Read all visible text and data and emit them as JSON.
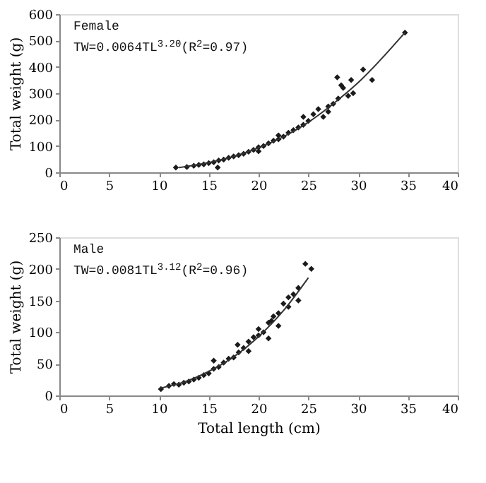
{
  "chart_data": [
    {
      "type": "scatter",
      "ylabel": "Total weight (g)",
      "annotations": [
        "Female",
        "TW=0.0064TL$^{3.20}$(R$^{2}$=0.97)"
      ],
      "xlim": [
        0,
        40
      ],
      "xticks": [
        0,
        5,
        10,
        15,
        20,
        25,
        30,
        35,
        40
      ],
      "ylim": [
        0,
        600
      ],
      "yticks": [
        0,
        100,
        200,
        300,
        400,
        500,
        600
      ],
      "series": [
        {
          "color": "#1a1a1a",
          "marker": "diamond",
          "x": [
            11.7,
            12.8,
            13.5,
            14,
            14.5,
            15,
            15.5,
            15.9,
            16,
            16.5,
            17,
            17.5,
            18,
            18.5,
            19,
            19.5,
            20,
            20,
            20.5,
            21,
            21.5,
            22,
            22,
            22.5,
            23,
            23.5,
            24,
            24.5,
            24.5,
            25,
            25.5,
            26,
            26.5,
            27,
            27,
            27.5,
            27.9,
            28.3,
            28,
            28.5,
            29,
            29.5,
            29.3,
            30.5,
            31.4,
            34.7
          ],
          "values": [
            18,
            20,
            25,
            28,
            30,
            35,
            38,
            18,
            45,
            48,
            55,
            60,
            65,
            70,
            78,
            85,
            95,
            80,
            100,
            110,
            120,
            125,
            140,
            135,
            150,
            160,
            170,
            180,
            210,
            195,
            220,
            240,
            210,
            230,
            250,
            260,
            360,
            330,
            280,
            320,
            290,
            300,
            350,
            390,
            350,
            530
          ]
        },
        {
          "type": "line",
          "color": "#333333",
          "x": [
            12,
            15,
            17.5,
            20,
            22.5,
            25,
            27.5,
            30,
            34.7
          ],
          "values": [
            18,
            37,
            60,
            93,
            135,
            190,
            260,
            340,
            530
          ]
        }
      ]
    },
    {
      "type": "scatter",
      "xlabel": "Total length (cm)",
      "ylabel": "Total weight (g)",
      "annotations": [
        "Male",
        "TW=0.0081TL$^{3.12}$(R$^{2}$=0.96)"
      ],
      "xlim": [
        0,
        40
      ],
      "xticks": [
        0,
        5,
        10,
        15,
        20,
        25,
        30,
        35,
        40
      ],
      "ylim": [
        0,
        250
      ],
      "yticks": [
        0,
        50,
        100,
        150,
        200,
        250
      ],
      "series": [
        {
          "color": "#1a1a1a",
          "marker": "diamond",
          "x": [
            10.2,
            11,
            11.5,
            12,
            12.5,
            13,
            13.5,
            14,
            14.5,
            15,
            15.5,
            15.5,
            16,
            16.5,
            17,
            17.5,
            17.9,
            18,
            18.5,
            19,
            19,
            19.5,
            20,
            20,
            20.5,
            21,
            21,
            21.3,
            21.5,
            22,
            22,
            22.5,
            23,
            23,
            23.5,
            24,
            24,
            24.7,
            25.3
          ],
          "values": [
            10,
            15,
            18,
            17,
            20,
            22,
            25,
            28,
            32,
            35,
            42,
            55,
            45,
            52,
            58,
            60,
            80,
            68,
            75,
            85,
            70,
            92,
            95,
            105,
            100,
            115,
            90,
            118,
            125,
            130,
            110,
            145,
            140,
            155,
            160,
            170,
            150,
            208,
            200
          ]
        },
        {
          "type": "line",
          "color": "#333333",
          "x": [
            10,
            12.5,
            15,
            17.5,
            20,
            22.5,
            25
          ],
          "values": [
            11,
            21,
            38,
            61,
            93,
            134,
            186
          ]
        }
      ]
    }
  ]
}
